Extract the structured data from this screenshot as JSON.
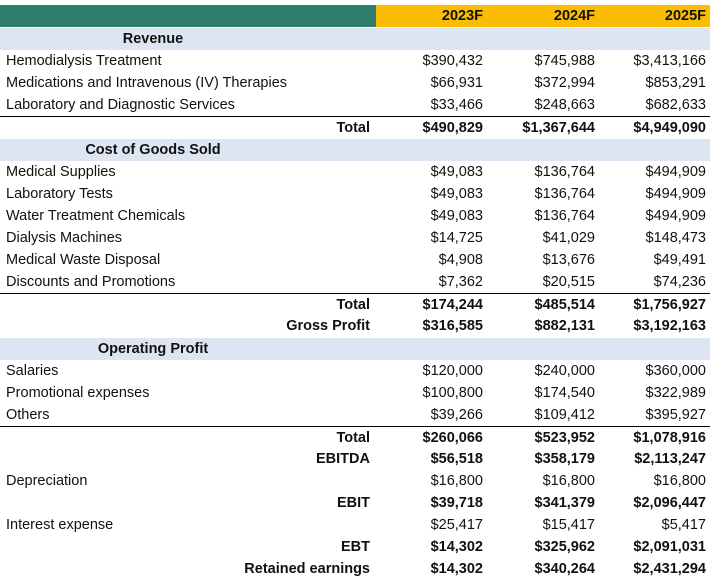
{
  "header": {
    "col1": "2023F",
    "col2": "2024F",
    "col3": "2025F"
  },
  "revenue": {
    "title": "Revenue",
    "rows": [
      {
        "label": "Hemodialysis Treatment",
        "v1": "$390,432",
        "v2": "$745,988",
        "v3": "$3,413,166"
      },
      {
        "label": "Medications and Intravenous (IV) Therapies",
        "v1": "$66,931",
        "v2": "$372,994",
        "v3": "$853,291"
      },
      {
        "label": "Laboratory and Diagnostic Services",
        "v1": "$33,466",
        "v2": "$248,663",
        "v3": "$682,633"
      }
    ],
    "total": {
      "label": "Total",
      "v1": "$490,829",
      "v2": "$1,367,644",
      "v3": "$4,949,090"
    }
  },
  "cogs": {
    "title": "Cost of Goods Sold",
    "rows": [
      {
        "label": "Medical Supplies",
        "v1": "$49,083",
        "v2": "$136,764",
        "v3": "$494,909"
      },
      {
        "label": "Laboratory Tests",
        "v1": "$49,083",
        "v2": "$136,764",
        "v3": "$494,909"
      },
      {
        "label": "Water Treatment Chemicals",
        "v1": "$49,083",
        "v2": "$136,764",
        "v3": "$494,909"
      },
      {
        "label": "Dialysis Machines",
        "v1": "$14,725",
        "v2": "$41,029",
        "v3": "$148,473"
      },
      {
        "label": "Medical Waste Disposal",
        "v1": "$4,908",
        "v2": "$13,676",
        "v3": "$49,491"
      },
      {
        "label": "Discounts and Promotions",
        "v1": "$7,362",
        "v2": "$20,515",
        "v3": "$74,236"
      }
    ],
    "total": {
      "label": "Total",
      "v1": "$174,244",
      "v2": "$485,514",
      "v3": "$1,756,927"
    },
    "gross_profit": {
      "label": "Gross Profit",
      "v1": "$316,585",
      "v2": "$882,131",
      "v3": "$3,192,163"
    }
  },
  "opex": {
    "title": "Operating Profit",
    "rows": [
      {
        "label": "Salaries",
        "v1": "$120,000",
        "v2": "$240,000",
        "v3": "$360,000"
      },
      {
        "label": "Promotional expenses",
        "v1": "$100,800",
        "v2": "$174,540",
        "v3": "$322,989"
      },
      {
        "label": "Others",
        "v1": "$39,266",
        "v2": "$109,412",
        "v3": "$395,927"
      }
    ],
    "total": {
      "label": "Total",
      "v1": "$260,066",
      "v2": "$523,952",
      "v3": "$1,078,916"
    }
  },
  "ebitda": {
    "label": "EBITDA",
    "v1": "$56,518",
    "v2": "$358,179",
    "v3": "$2,113,247"
  },
  "depreciation": {
    "label": "Depreciation",
    "v1": "$16,800",
    "v2": "$16,800",
    "v3": "$16,800"
  },
  "ebit": {
    "label": "EBIT",
    "v1": "$39,718",
    "v2": "$341,379",
    "v3": "$2,096,447"
  },
  "interest": {
    "label": "Interest expense",
    "v1": "$25,417",
    "v2": "$15,417",
    "v3": "$5,417"
  },
  "ebt": {
    "label": "EBT",
    "v1": "$14,302",
    "v2": "$325,962",
    "v3": "$2,091,031"
  },
  "retained": {
    "label": "Retained earnings",
    "v1": "$14,302",
    "v2": "$340,264",
    "v3": "$2,431,294"
  }
}
